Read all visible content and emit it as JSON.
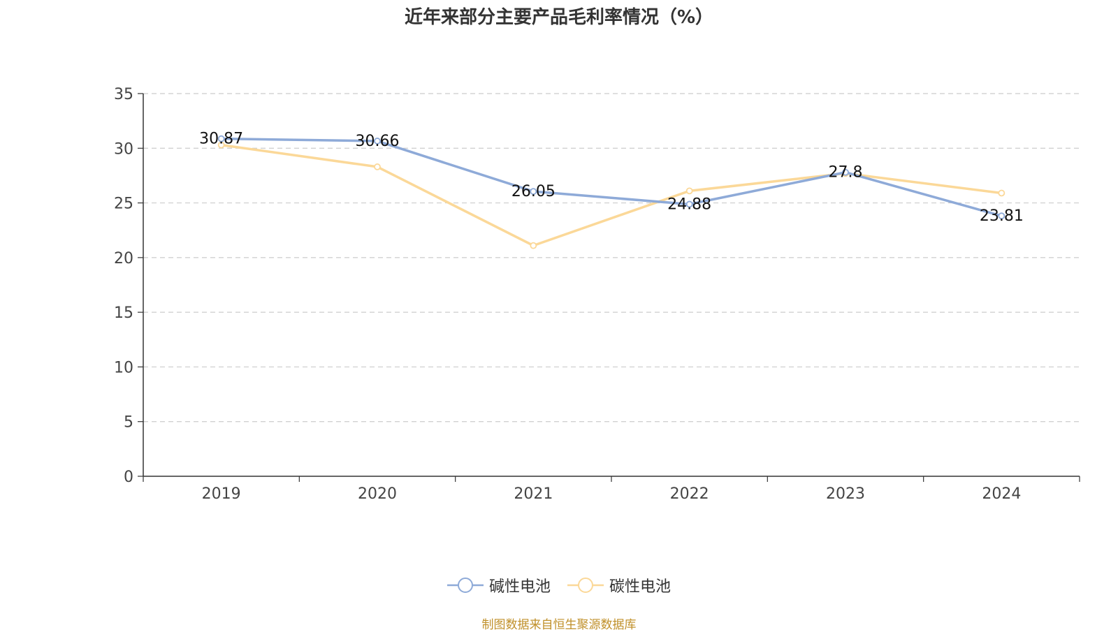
{
  "chart_data": {
    "type": "line",
    "title": "近年来部分主要产品毛利率情况（%）",
    "categories": [
      "2019",
      "2020",
      "2021",
      "2022",
      "2023",
      "2024"
    ],
    "ylim": [
      0,
      35
    ],
    "yticks": [
      0,
      5,
      10,
      15,
      20,
      25,
      30,
      35
    ],
    "grid": true,
    "legend_position": "bottom",
    "series": [
      {
        "name": "碱性电池",
        "color": "#8eaad8",
        "values": [
          30.87,
          30.66,
          26.05,
          24.88,
          27.8,
          23.81
        ],
        "labels": [
          "30.87",
          "30.66",
          "26.05",
          "24.88",
          "27.8",
          "23.81"
        ]
      },
      {
        "name": "碳性电池",
        "color": "#fbd898",
        "values": [
          30.3,
          28.3,
          21.1,
          26.1,
          27.7,
          25.9
        ]
      }
    ]
  },
  "source_note": "制图数据来自恒生聚源数据库"
}
